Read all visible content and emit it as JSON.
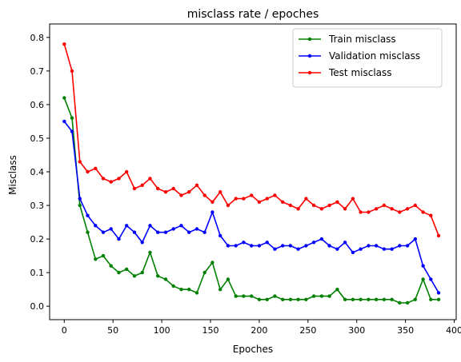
{
  "chart_data": {
    "type": "line",
    "title": "misclass rate / epoches",
    "xlabel": "Epoches",
    "ylabel": "Misclass",
    "xlim": [
      -15,
      402
    ],
    "ylim": [
      -0.04,
      0.84
    ],
    "xticks": [
      0,
      50,
      100,
      150,
      200,
      250,
      300,
      350,
      400
    ],
    "yticks": [
      0.0,
      0.1,
      0.2,
      0.3,
      0.4,
      0.5,
      0.6,
      0.7,
      0.8
    ],
    "grid": false,
    "legend_position": "top-right",
    "x_start": 0,
    "x_step": 8,
    "series": [
      {
        "name": "Train misclass",
        "color": "#008000",
        "values": [
          0.62,
          0.56,
          0.3,
          0.22,
          0.14,
          0.15,
          0.12,
          0.1,
          0.11,
          0.09,
          0.1,
          0.16,
          0.09,
          0.08,
          0.06,
          0.05,
          0.05,
          0.04,
          0.1,
          0.13,
          0.05,
          0.08,
          0.03,
          0.03,
          0.03,
          0.02,
          0.02,
          0.03,
          0.02,
          0.02,
          0.02,
          0.02,
          0.03,
          0.03,
          0.03,
          0.05,
          0.02,
          0.02,
          0.02,
          0.02,
          0.02,
          0.02,
          0.02,
          0.01,
          0.01,
          0.02,
          0.08,
          0.02,
          0.02
        ]
      },
      {
        "name": "Validation misclass",
        "color": "#0000ff",
        "values": [
          0.55,
          0.52,
          0.32,
          0.27,
          0.24,
          0.22,
          0.23,
          0.2,
          0.24,
          0.22,
          0.19,
          0.24,
          0.22,
          0.22,
          0.23,
          0.24,
          0.22,
          0.23,
          0.22,
          0.28,
          0.21,
          0.18,
          0.18,
          0.19,
          0.18,
          0.18,
          0.19,
          0.17,
          0.18,
          0.18,
          0.17,
          0.18,
          0.19,
          0.2,
          0.18,
          0.17,
          0.19,
          0.16,
          0.17,
          0.18,
          0.18,
          0.17,
          0.17,
          0.18,
          0.18,
          0.2,
          0.12,
          0.08,
          0.04
        ]
      },
      {
        "name": "Test misclass",
        "color": "#ff0000",
        "values": [
          0.78,
          0.7,
          0.43,
          0.4,
          0.41,
          0.38,
          0.37,
          0.38,
          0.4,
          0.35,
          0.36,
          0.38,
          0.35,
          0.34,
          0.35,
          0.33,
          0.34,
          0.36,
          0.33,
          0.31,
          0.34,
          0.3,
          0.32,
          0.32,
          0.33,
          0.31,
          0.32,
          0.33,
          0.31,
          0.3,
          0.29,
          0.32,
          0.3,
          0.29,
          0.3,
          0.31,
          0.29,
          0.32,
          0.28,
          0.28,
          0.29,
          0.3,
          0.29,
          0.28,
          0.29,
          0.3,
          0.28,
          0.27,
          0.21
        ]
      }
    ]
  }
}
